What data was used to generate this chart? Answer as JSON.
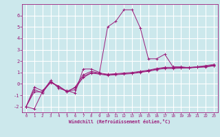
{
  "xlabel": "Windchill (Refroidissement éolien,°C)",
  "background_color": "#cce8ec",
  "grid_color": "#ffffff",
  "line_color": "#9b1a7a",
  "xlim": [
    -0.5,
    23.5
  ],
  "ylim": [
    -2.5,
    7.0
  ],
  "yticks": [
    -2,
    -1,
    0,
    1,
    2,
    3,
    4,
    5,
    6
  ],
  "xticks": [
    0,
    1,
    2,
    3,
    4,
    5,
    6,
    7,
    8,
    9,
    10,
    11,
    12,
    13,
    14,
    15,
    16,
    17,
    18,
    19,
    20,
    21,
    22,
    23
  ],
  "series_x": [
    0,
    1,
    2,
    3,
    4,
    5,
    6,
    7,
    8,
    9,
    10,
    11,
    12,
    13,
    14,
    15,
    16,
    17,
    18,
    19,
    20,
    21,
    22,
    23
  ],
  "series": [
    [
      -2.0,
      -2.2,
      -0.7,
      0.3,
      -0.4,
      -0.6,
      -0.8,
      1.3,
      1.3,
      1.0,
      5.0,
      5.5,
      6.5,
      6.5,
      4.9,
      2.2,
      2.2,
      2.6,
      1.5,
      1.5,
      1.4,
      1.5,
      1.6,
      1.7
    ],
    [
      -2.0,
      -0.7,
      -0.7,
      0.1,
      -0.2,
      -0.7,
      -0.3,
      0.8,
      1.1,
      0.95,
      0.85,
      0.9,
      0.95,
      1.0,
      1.1,
      1.2,
      1.35,
      1.45,
      1.45,
      1.45,
      1.45,
      1.5,
      1.55,
      1.65
    ],
    [
      -2.0,
      -0.5,
      -0.8,
      0.2,
      -0.25,
      -0.7,
      -0.5,
      0.65,
      1.0,
      0.9,
      0.8,
      0.85,
      0.9,
      0.95,
      1.05,
      1.15,
      1.3,
      1.4,
      1.4,
      1.4,
      1.42,
      1.46,
      1.5,
      1.6
    ],
    [
      -2.0,
      -0.3,
      -0.6,
      0.15,
      -0.2,
      -0.65,
      -0.35,
      0.55,
      0.95,
      0.85,
      0.75,
      0.8,
      0.85,
      0.9,
      1.0,
      1.1,
      1.25,
      1.35,
      1.35,
      1.38,
      1.4,
      1.44,
      1.48,
      1.58
    ]
  ]
}
